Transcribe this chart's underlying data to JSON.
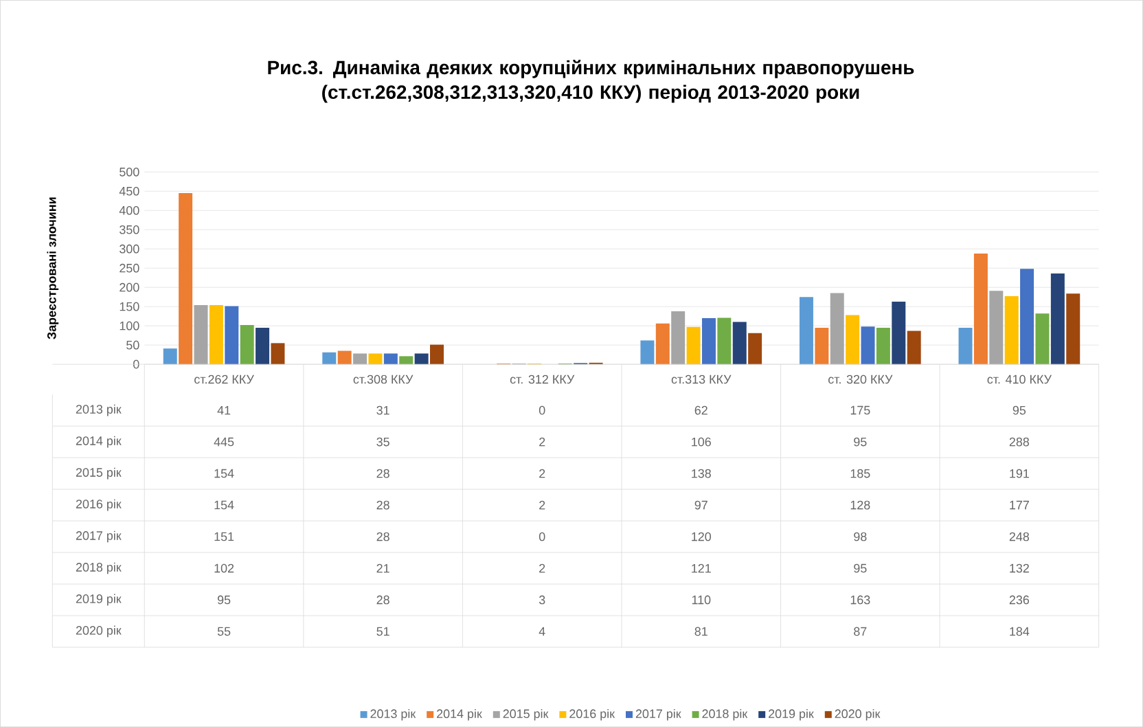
{
  "chart_data": {
    "type": "bar",
    "title": "Рис.3. Динаміка деяких корупційних кримінальних правопорушень (ст.ст.262,308,312,313,320,410 ККУ) період 2013-2020 роки",
    "ylabel": "Зареєстровані злочини",
    "categories": [
      "ст.262 ККУ",
      "ст.308 ККУ",
      "ст. 312 ККУ",
      "ст.313 ККУ",
      "ст. 320 ККУ",
      "ст. 410 ККУ"
    ],
    "series": [
      {
        "name": "2013 рік",
        "color": "#5b9bd5",
        "values": [
          41,
          31,
          0,
          62,
          175,
          95
        ]
      },
      {
        "name": "2014 рік",
        "color": "#ed7d31",
        "values": [
          445,
          35,
          2,
          106,
          95,
          288
        ]
      },
      {
        "name": "2015 рік",
        "color": "#a5a5a5",
        "values": [
          154,
          28,
          2,
          138,
          185,
          191
        ]
      },
      {
        "name": "2016 рік",
        "color": "#ffc000",
        "values": [
          154,
          28,
          2,
          97,
          128,
          177
        ]
      },
      {
        "name": "2017 рік",
        "color": "#4472c4",
        "values": [
          151,
          28,
          0,
          120,
          98,
          248
        ]
      },
      {
        "name": "2018 рік",
        "color": "#70ad47",
        "values": [
          102,
          21,
          2,
          121,
          95,
          132
        ]
      },
      {
        "name": "2019 рік",
        "color": "#264478",
        "values": [
          95,
          28,
          3,
          110,
          163,
          236
        ]
      },
      {
        "name": "2020 рік",
        "color": "#9e480e",
        "values": [
          55,
          51,
          4,
          81,
          87,
          184
        ]
      }
    ],
    "ylim": [
      0,
      500
    ],
    "yticks": [
      0,
      50,
      100,
      150,
      200,
      250,
      300,
      350,
      400,
      450,
      500
    ],
    "grid": "y",
    "legend": "bottom",
    "data_labels": true
  }
}
